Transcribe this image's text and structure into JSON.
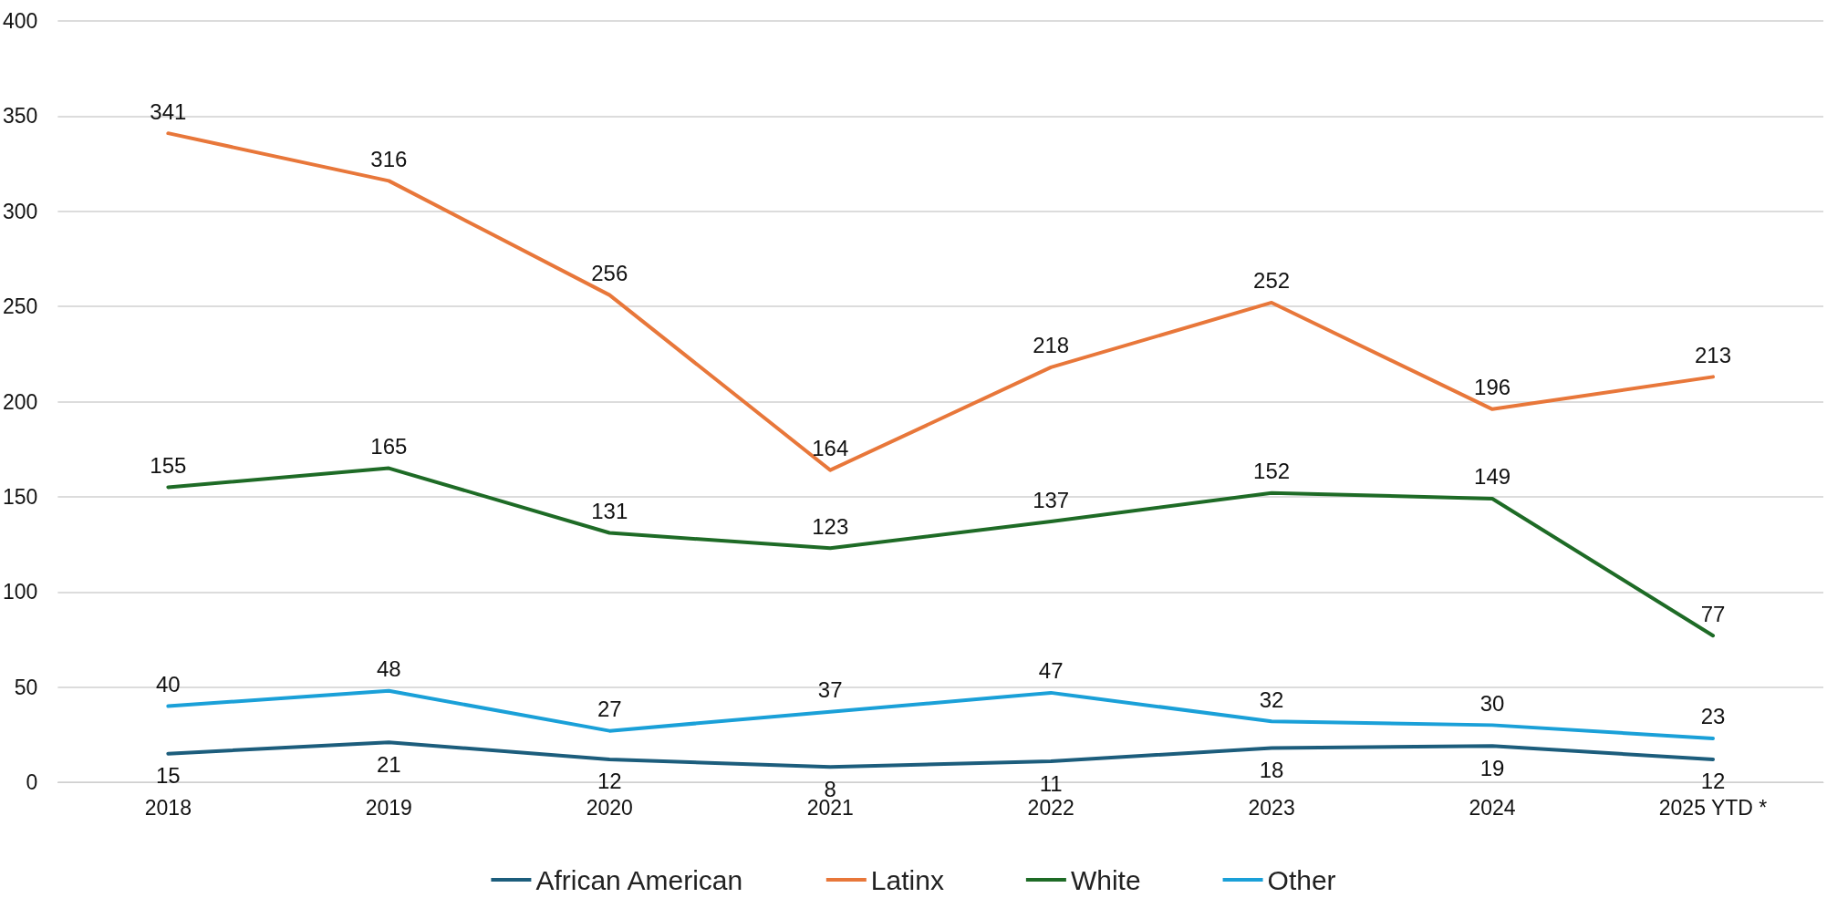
{
  "chart_data": {
    "type": "line",
    "categories": [
      "2018",
      "2019",
      "2020",
      "2021",
      "2022",
      "2023",
      "2024",
      "2025 YTD *"
    ],
    "series": [
      {
        "name": "African American",
        "color": "#1c5d7c",
        "values": [
          15,
          21,
          12,
          8,
          11,
          18,
          19,
          12
        ]
      },
      {
        "name": "Latinx",
        "color": "#e8773a",
        "values": [
          341,
          316,
          256,
          164,
          218,
          252,
          196,
          213
        ]
      },
      {
        "name": "White",
        "color": "#1e6b26",
        "values": [
          155,
          165,
          131,
          123,
          137,
          152,
          149,
          77
        ]
      },
      {
        "name": "Other",
        "color": "#1aa0d8",
        "values": [
          40,
          48,
          27,
          37,
          47,
          32,
          30,
          23
        ]
      }
    ],
    "ylim": [
      0,
      400
    ],
    "yticks": [
      0,
      50,
      100,
      150,
      200,
      250,
      300,
      350,
      400
    ],
    "grid": "y",
    "legend": "bottom",
    "data_labels": true,
    "marker": "none",
    "line_style": "solid"
  }
}
